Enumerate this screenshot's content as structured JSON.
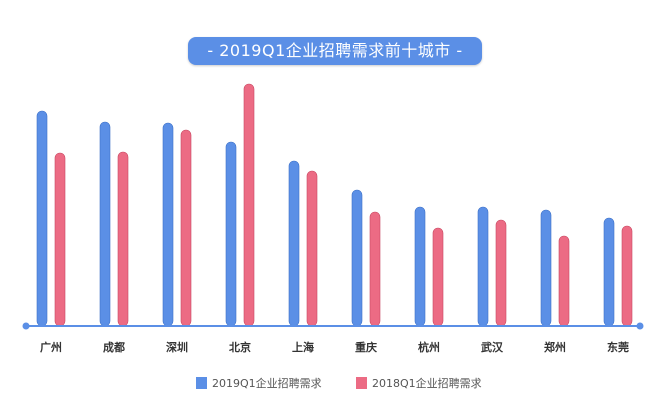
{
  "chart_data": {
    "type": "bar",
    "title": "- 2019Q1企业招聘需求前十城市 -",
    "xlabel": "",
    "ylabel": "",
    "ylim": [
      0,
      250
    ],
    "grid": false,
    "legend_position": "bottom",
    "categories": [
      "广州",
      "成都",
      "深圳",
      "北京",
      "上海",
      "重庆",
      "杭州",
      "武汉",
      "郑州",
      "东莞"
    ],
    "series": [
      {
        "name": "2019Q1企业招聘需求",
        "color": "#5b8fe6",
        "values": [
          215,
          204,
          203,
          184,
          165,
          136,
          119,
          119,
          116,
          108
        ]
      },
      {
        "name": "2018Q1企业招聘需求",
        "color": "#ec6b84",
        "values": [
          173,
          174,
          196,
          242,
          155,
          114,
          98,
          106,
          90,
          100
        ]
      }
    ]
  }
}
